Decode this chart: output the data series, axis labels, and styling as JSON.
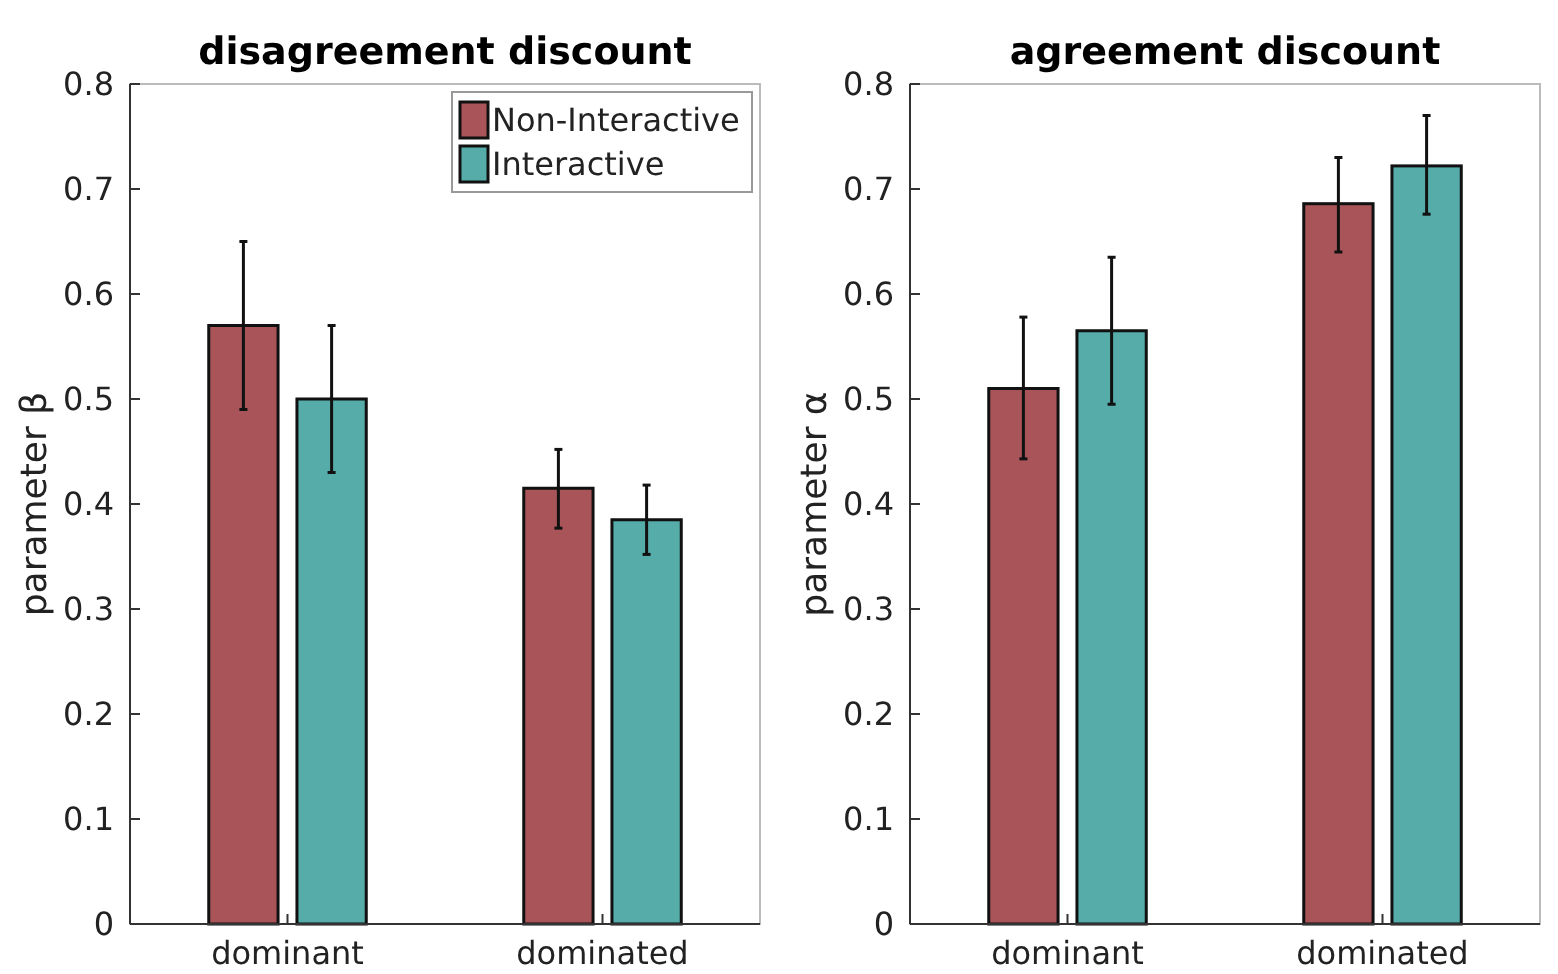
{
  "chart_data": [
    {
      "type": "bar",
      "title": "disagreement discount",
      "ylabel": "parameter β",
      "categories": [
        "dominant",
        "dominated"
      ],
      "ylim": [
        0,
        0.8
      ],
      "yticks": [
        0,
        0.1,
        0.2,
        0.3,
        0.4,
        0.5,
        0.6,
        0.7,
        0.8
      ],
      "legend": "top right",
      "grid": false,
      "series": [
        {
          "name": "Non-Interactive",
          "color": "#a85458",
          "values": [
            0.57,
            0.415
          ],
          "errors": [
            [
              0.49,
              0.65
            ],
            [
              0.377,
              0.452
            ]
          ]
        },
        {
          "name": "Interactive",
          "color": "#55aca9",
          "values": [
            0.5,
            0.385
          ],
          "errors": [
            [
              0.43,
              0.57
            ],
            [
              0.352,
              0.418
            ]
          ]
        }
      ]
    },
    {
      "type": "bar",
      "title": "agreement discount",
      "ylabel": "parameter α",
      "categories": [
        "dominant",
        "dominated"
      ],
      "ylim": [
        0,
        0.8
      ],
      "yticks": [
        0,
        0.1,
        0.2,
        0.3,
        0.4,
        0.5,
        0.6,
        0.7,
        0.8
      ],
      "legend": false,
      "grid": false,
      "series": [
        {
          "color": "#a85458",
          "values": [
            0.51,
            0.686
          ],
          "errors": [
            [
              0.443,
              0.578
            ],
            [
              0.64,
              0.73
            ]
          ]
        },
        {
          "color": "#55aca9",
          "values": [
            0.565,
            0.722
          ],
          "errors": [
            [
              0.495,
              0.635
            ],
            [
              0.676,
              0.77
            ]
          ]
        }
      ]
    }
  ]
}
